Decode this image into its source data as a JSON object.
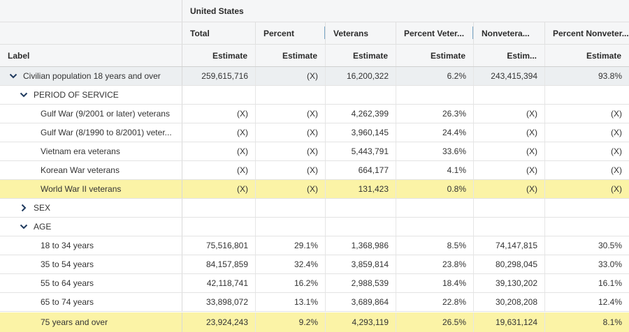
{
  "header": {
    "geography": "United States",
    "label_col": "Label",
    "columns": [
      {
        "name": "Total",
        "sub": "Estimate"
      },
      {
        "name": "Percent",
        "sub": "Estimate"
      },
      {
        "name": "Veterans",
        "sub": "Estimate"
      },
      {
        "name": "Percent Veter...",
        "sub": "Estimate"
      },
      {
        "name": "Nonvetera...",
        "sub": "Estim..."
      },
      {
        "name": "Percent Nonveter...",
        "sub": "Estimate"
      }
    ]
  },
  "rows": [
    {
      "label": "Civilian population 18 years and over",
      "values": [
        "259,615,716",
        "(X)",
        "16,200,322",
        "6.2%",
        "243,415,394",
        "93.8%"
      ]
    },
    {
      "label": "PERIOD OF SERVICE",
      "values": [
        "",
        "",
        "",
        "",
        "",
        ""
      ]
    },
    {
      "label": "Gulf War (9/2001 or later) veterans",
      "values": [
        "(X)",
        "(X)",
        "4,262,399",
        "26.3%",
        "(X)",
        "(X)"
      ]
    },
    {
      "label": "Gulf War (8/1990 to 8/2001) veter...",
      "values": [
        "(X)",
        "(X)",
        "3,960,145",
        "24.4%",
        "(X)",
        "(X)"
      ]
    },
    {
      "label": "Vietnam era veterans",
      "values": [
        "(X)",
        "(X)",
        "5,443,791",
        "33.6%",
        "(X)",
        "(X)"
      ]
    },
    {
      "label": "Korean War veterans",
      "values": [
        "(X)",
        "(X)",
        "664,177",
        "4.1%",
        "(X)",
        "(X)"
      ]
    },
    {
      "label": "World War II veterans",
      "values": [
        "(X)",
        "(X)",
        "131,423",
        "0.8%",
        "(X)",
        "(X)"
      ]
    },
    {
      "label": "SEX",
      "values": [
        "",
        "",
        "",
        "",
        "",
        ""
      ]
    },
    {
      "label": "AGE",
      "values": [
        "",
        "",
        "",
        "",
        "",
        ""
      ]
    },
    {
      "label": "18 to 34 years",
      "values": [
        "75,516,801",
        "29.1%",
        "1,368,986",
        "8.5%",
        "74,147,815",
        "30.5%"
      ]
    },
    {
      "label": "35 to 54 years",
      "values": [
        "84,157,859",
        "32.4%",
        "3,859,814",
        "23.8%",
        "80,298,045",
        "33.0%"
      ]
    },
    {
      "label": "55 to 64 years",
      "values": [
        "42,118,741",
        "16.2%",
        "2,988,539",
        "18.4%",
        "39,130,202",
        "16.1%"
      ]
    },
    {
      "label": "65 to 74 years",
      "values": [
        "33,898,072",
        "13.1%",
        "3,689,864",
        "22.8%",
        "30,208,208",
        "12.4%"
      ]
    },
    {
      "label": "75 years and over",
      "values": [
        "23,924,243",
        "9.2%",
        "4,293,119",
        "26.5%",
        "19,631,124",
        "8.1%"
      ]
    }
  ],
  "colors": {
    "highlight": "#fbf3a6",
    "total_row": "#eceff1",
    "header_bg": "#f5f6f7",
    "chevron": "#1f3a5f"
  }
}
